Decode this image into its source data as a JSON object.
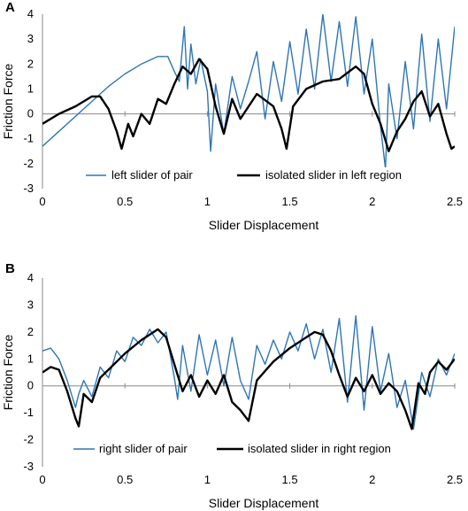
{
  "chart_data": [
    {
      "type": "line",
      "panel": "A",
      "xlabel": "Slider Displacement",
      "ylabel": "Friction Force",
      "xlim": [
        0,
        2.5
      ],
      "ylim": [
        -3,
        4
      ],
      "x_ticks": [
        "0",
        "0.5",
        "1",
        "1.5",
        "2",
        "2.5"
      ],
      "y_ticks": [
        "-3",
        "-2",
        "-1",
        "0",
        "1",
        "2",
        "3",
        "4"
      ],
      "grid": false,
      "legend_position": "bottom",
      "series": [
        {
          "name": "left slider of pair",
          "color": "#2E75B6",
          "x": [
            0,
            0.1,
            0.2,
            0.3,
            0.4,
            0.5,
            0.6,
            0.7,
            0.76,
            0.8,
            0.83,
            0.86,
            0.88,
            0.9,
            0.93,
            0.96,
            1.0,
            1.02,
            1.05,
            1.1,
            1.15,
            1.2,
            1.25,
            1.3,
            1.35,
            1.4,
            1.45,
            1.5,
            1.55,
            1.6,
            1.65,
            1.7,
            1.75,
            1.8,
            1.85,
            1.9,
            1.95,
            2.0,
            2.05,
            2.08,
            2.1,
            2.15,
            2.2,
            2.25,
            2.3,
            2.35,
            2.4,
            2.45,
            2.5
          ],
          "y": [
            -1.3,
            -0.7,
            -0.1,
            0.5,
            1.1,
            1.6,
            2.0,
            2.3,
            2.3,
            1.7,
            1.3,
            3.5,
            1.0,
            2.8,
            1.2,
            2.2,
            0.9,
            -1.5,
            1.2,
            -0.8,
            1.5,
            0.2,
            1.3,
            2.5,
            -0.2,
            2.1,
            0.5,
            2.9,
            0.8,
            3.4,
            1.0,
            4.0,
            1.3,
            3.7,
            1.1,
            3.9,
            0.8,
            3.0,
            -0.5,
            -2.2,
            1.2,
            -1.0,
            2.1,
            -0.6,
            3.2,
            -0.3,
            3.0,
            0.2,
            3.5
          ]
        },
        {
          "name": "isolated slider in left region",
          "color": "#000000",
          "x": [
            0,
            0.1,
            0.2,
            0.3,
            0.35,
            0.4,
            0.45,
            0.48,
            0.52,
            0.55,
            0.6,
            0.65,
            0.7,
            0.75,
            0.8,
            0.85,
            0.9,
            0.95,
            1.0,
            1.05,
            1.1,
            1.15,
            1.2,
            1.3,
            1.4,
            1.45,
            1.48,
            1.52,
            1.6,
            1.7,
            1.8,
            1.9,
            1.95,
            2.0,
            2.05,
            2.1,
            2.15,
            2.2,
            2.25,
            2.3,
            2.35,
            2.4,
            2.45,
            2.48,
            2.5
          ],
          "y": [
            -0.4,
            0,
            0.3,
            0.7,
            0.7,
            0.2,
            -0.7,
            -1.4,
            -0.4,
            -0.9,
            0,
            -0.4,
            0.6,
            0.4,
            1.2,
            1.9,
            1.6,
            2.2,
            1.8,
            0.3,
            -0.8,
            0.6,
            -0.2,
            0.8,
            0.3,
            -0.6,
            -1.4,
            0.3,
            1.0,
            1.3,
            1.4,
            1.9,
            1.6,
            0.4,
            -0.4,
            -1.5,
            -0.7,
            -0.2,
            0.5,
            0.9,
            -0.1,
            0.4,
            -0.8,
            -1.4,
            -1.3
          ]
        }
      ]
    },
    {
      "type": "line",
      "panel": "B",
      "xlabel": "Slider Displacement",
      "ylabel": "Friction Force",
      "xlim": [
        0,
        2.5
      ],
      "ylim": [
        -3,
        4
      ],
      "x_ticks": [
        "0",
        "0.5",
        "1",
        "1.5",
        "2",
        "2.5"
      ],
      "y_ticks": [
        "-3",
        "-2",
        "-1",
        "0",
        "1",
        "2",
        "3",
        "4"
      ],
      "grid": false,
      "legend_position": "bottom",
      "series": [
        {
          "name": "right slider of pair",
          "color": "#2E75B6",
          "x": [
            0,
            0.05,
            0.1,
            0.15,
            0.2,
            0.22,
            0.25,
            0.3,
            0.35,
            0.4,
            0.45,
            0.5,
            0.55,
            0.6,
            0.65,
            0.7,
            0.75,
            0.8,
            0.82,
            0.85,
            0.9,
            0.95,
            1.0,
            1.05,
            1.1,
            1.15,
            1.2,
            1.25,
            1.3,
            1.35,
            1.4,
            1.45,
            1.5,
            1.55,
            1.6,
            1.65,
            1.7,
            1.75,
            1.8,
            1.85,
            1.9,
            1.95,
            2.0,
            2.05,
            2.1,
            2.15,
            2.2,
            2.25,
            2.3,
            2.35,
            2.4,
            2.45,
            2.5
          ],
          "y": [
            1.3,
            1.4,
            1.0,
            0.2,
            -0.8,
            -0.3,
            0.2,
            -0.4,
            0.7,
            0.3,
            1.3,
            0.9,
            1.8,
            1.5,
            2.1,
            1.6,
            2.0,
            0.3,
            -0.5,
            1.5,
            -0.2,
            1.9,
            0.4,
            1.7,
            0.0,
            1.8,
            0.2,
            -0.5,
            1.5,
            0.8,
            1.7,
            1.0,
            2.0,
            1.3,
            2.3,
            1.0,
            2.1,
            0.5,
            2.5,
            -0.6,
            2.6,
            -0.9,
            2.2,
            -0.2,
            1.2,
            -0.8,
            0.2,
            -1.6,
            0.5,
            -0.4,
            1.0,
            0.4,
            1.2
          ]
        },
        {
          "name": "isolated slider in right region",
          "color": "#000000",
          "x": [
            0,
            0.05,
            0.1,
            0.15,
            0.2,
            0.22,
            0.25,
            0.3,
            0.35,
            0.4,
            0.5,
            0.6,
            0.65,
            0.7,
            0.75,
            0.8,
            0.85,
            0.9,
            0.95,
            1.0,
            1.05,
            1.1,
            1.15,
            1.2,
            1.25,
            1.3,
            1.4,
            1.5,
            1.6,
            1.65,
            1.7,
            1.75,
            1.8,
            1.85,
            1.9,
            1.95,
            2.0,
            2.05,
            2.1,
            2.15,
            2.2,
            2.24,
            2.28,
            2.32,
            2.35,
            2.4,
            2.45,
            2.5
          ],
          "y": [
            0.5,
            0.7,
            0.6,
            -0.2,
            -1.2,
            -1.5,
            -0.3,
            -0.6,
            0.3,
            0.6,
            1.2,
            1.7,
            1.9,
            2.1,
            1.8,
            0.8,
            -0.2,
            0.4,
            -0.4,
            0.2,
            -0.3,
            0.4,
            -0.6,
            -0.9,
            -1.3,
            0.2,
            0.9,
            1.4,
            1.8,
            2.0,
            1.9,
            1.3,
            0.4,
            -0.4,
            0.3,
            -0.2,
            0.4,
            -0.3,
            0.1,
            -0.2,
            -0.9,
            -1.6,
            0.1,
            -0.3,
            0.5,
            0.9,
            0.6,
            1.0
          ]
        }
      ]
    }
  ]
}
